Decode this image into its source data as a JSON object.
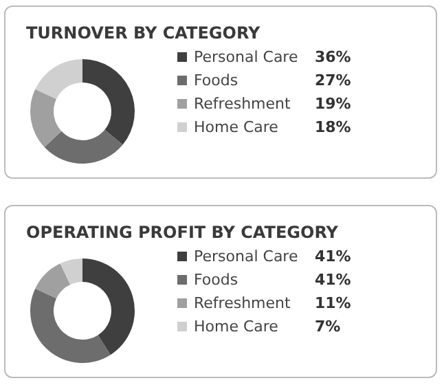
{
  "chart_data": [
    {
      "type": "donut",
      "title": "TURNOVER BY CATEGORY",
      "categories": [
        "Personal Care",
        "Foods",
        "Refreshment",
        "Home Care"
      ],
      "values": [
        36,
        27,
        19,
        18
      ],
      "value_labels": [
        "36%",
        "27%",
        "19%",
        "18%"
      ],
      "colors": [
        "#3f3f3f",
        "#6d6d6d",
        "#a0a0a0",
        "#d0d0d0"
      ],
      "legend": "right"
    },
    {
      "type": "donut",
      "title": "OPERATING PROFIT BY CATEGORY",
      "categories": [
        "Personal Care",
        "Foods",
        "Refreshment",
        "Home Care"
      ],
      "values": [
        41,
        41,
        11,
        7
      ],
      "value_labels": [
        "41%",
        "41%",
        "11%",
        "7%"
      ],
      "colors": [
        "#3f3f3f",
        "#6d6d6d",
        "#a0a0a0",
        "#d0d0d0"
      ],
      "legend": "right"
    }
  ]
}
